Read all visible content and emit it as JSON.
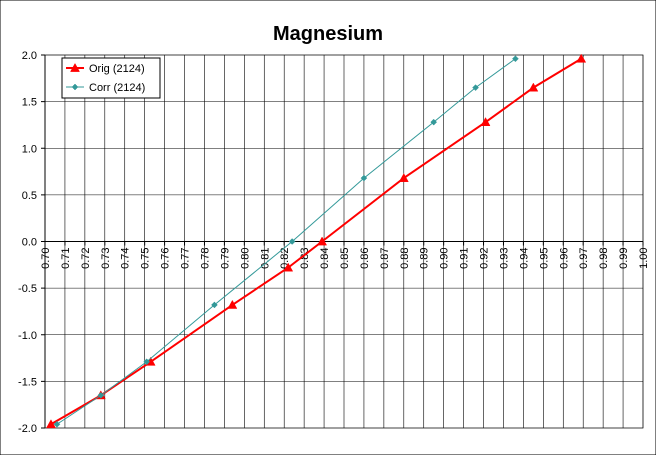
{
  "chart_data": {
    "type": "line",
    "title": "Magnesium",
    "xlabel": "",
    "ylabel": "",
    "xlim": [
      0.7,
      1.0
    ],
    "ylim": [
      -2.0,
      2.0
    ],
    "x_ticks": [
      "0.70",
      "0.71",
      "0.72",
      "0.73",
      "0.74",
      "0.75",
      "0.76",
      "0.77",
      "0.78",
      "0.79",
      "0.80",
      "0.81",
      "0.82",
      "0.83",
      "0.84",
      "0.85",
      "0.86",
      "0.87",
      "0.88",
      "0.89",
      "0.90",
      "0.91",
      "0.92",
      "0.93",
      "0.94",
      "0.95",
      "0.96",
      "0.97",
      "0.98",
      "0.99",
      "1.00"
    ],
    "y_ticks": [
      "2.0",
      "1.5",
      "1.0",
      "0.5",
      "0.0",
      "-0.5",
      "-1.0",
      "-1.5",
      "-2.0"
    ],
    "grid": true,
    "legend_position": "top-left",
    "series": [
      {
        "name": "Orig (2124)",
        "color": "#ff0000",
        "marker": "triangle",
        "points": [
          [
            0.703,
            -1.96
          ],
          [
            0.728,
            -1.65
          ],
          [
            0.753,
            -1.29
          ],
          [
            0.794,
            -0.68
          ],
          [
            0.822,
            -0.28
          ],
          [
            0.839,
            0.0
          ],
          [
            0.88,
            0.68
          ],
          [
            0.921,
            1.28
          ],
          [
            0.945,
            1.65
          ],
          [
            0.969,
            1.96
          ]
        ]
      },
      {
        "name": "Corr (2124)",
        "color": "#339999",
        "marker": "diamond",
        "points": [
          [
            0.706,
            -1.96
          ],
          [
            0.728,
            -1.65
          ],
          [
            0.751,
            -1.29
          ],
          [
            0.785,
            -0.68
          ],
          [
            0.824,
            0.0
          ],
          [
            0.86,
            0.68
          ],
          [
            0.895,
            1.28
          ],
          [
            0.916,
            1.65
          ],
          [
            0.936,
            1.96
          ]
        ]
      }
    ]
  }
}
